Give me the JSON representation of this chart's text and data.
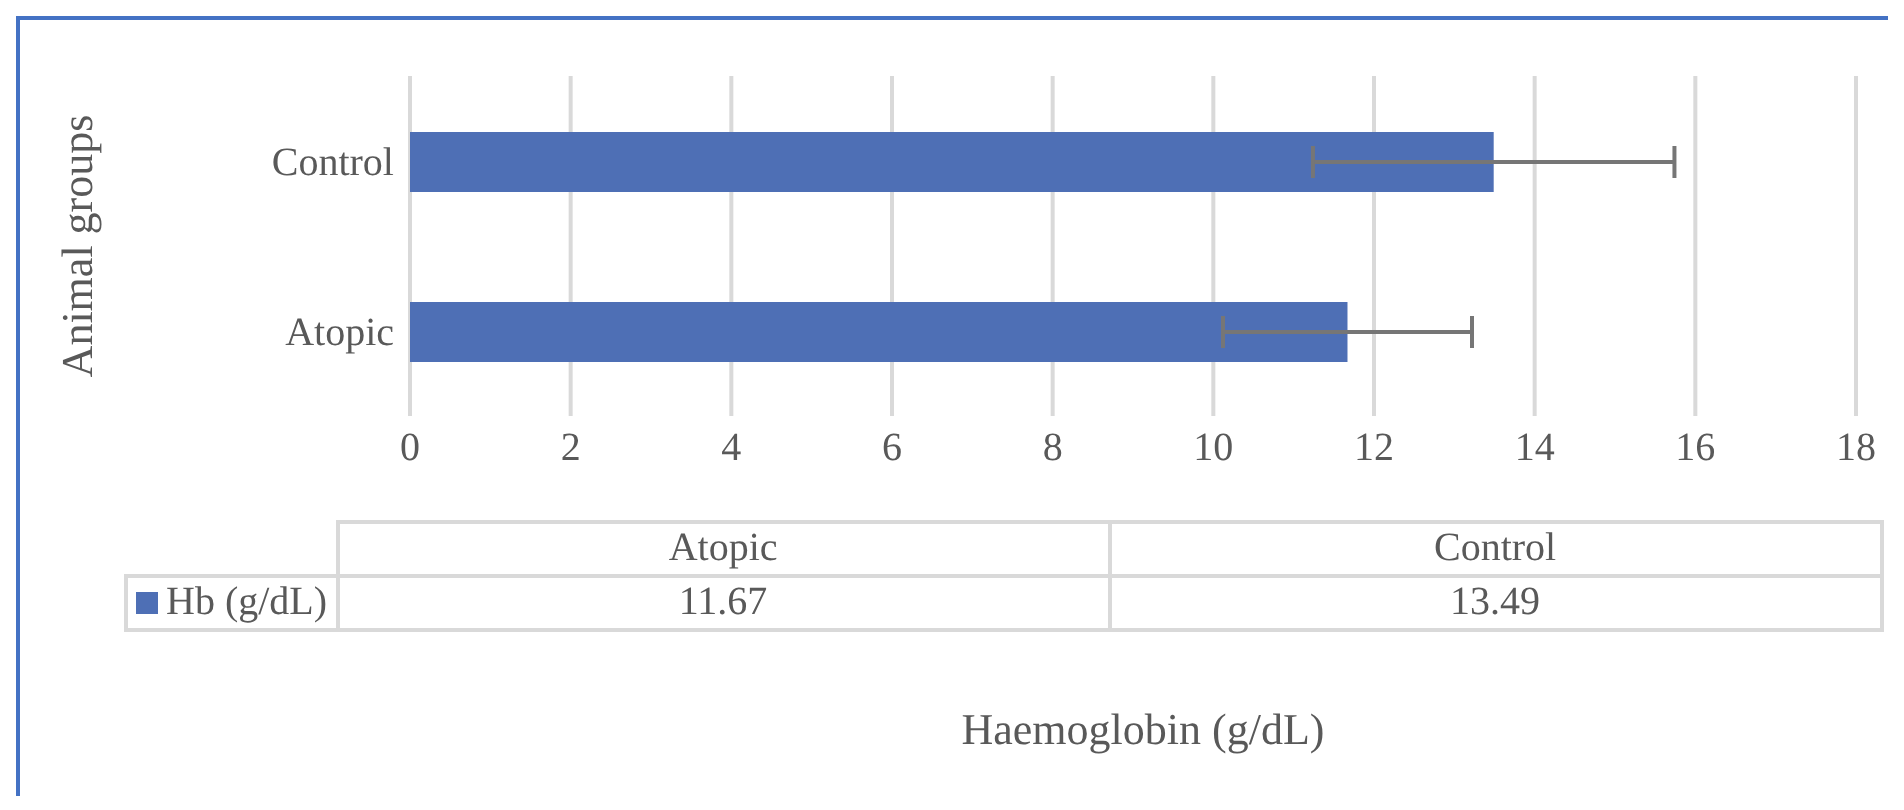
{
  "chart_data": {
    "type": "bar",
    "orientation": "horizontal",
    "categories": [
      "Control",
      "Atopic"
    ],
    "series": [
      {
        "name": "Hb (g/dL)",
        "color": "#4e6fb5",
        "values": [
          13.49,
          11.67
        ],
        "errors": [
          2.25,
          1.55
        ]
      }
    ],
    "xlim": [
      0,
      18
    ],
    "xticks": [
      0,
      2,
      4,
      6,
      8,
      10,
      12,
      14,
      16,
      18
    ],
    "grid": "x",
    "legend": "bottom",
    "annotations": [
      "11.67",
      "13.49",
      "Haemoglobin (g/dL)"
    ],
    "ylabel": "Animal groups"
  }
}
